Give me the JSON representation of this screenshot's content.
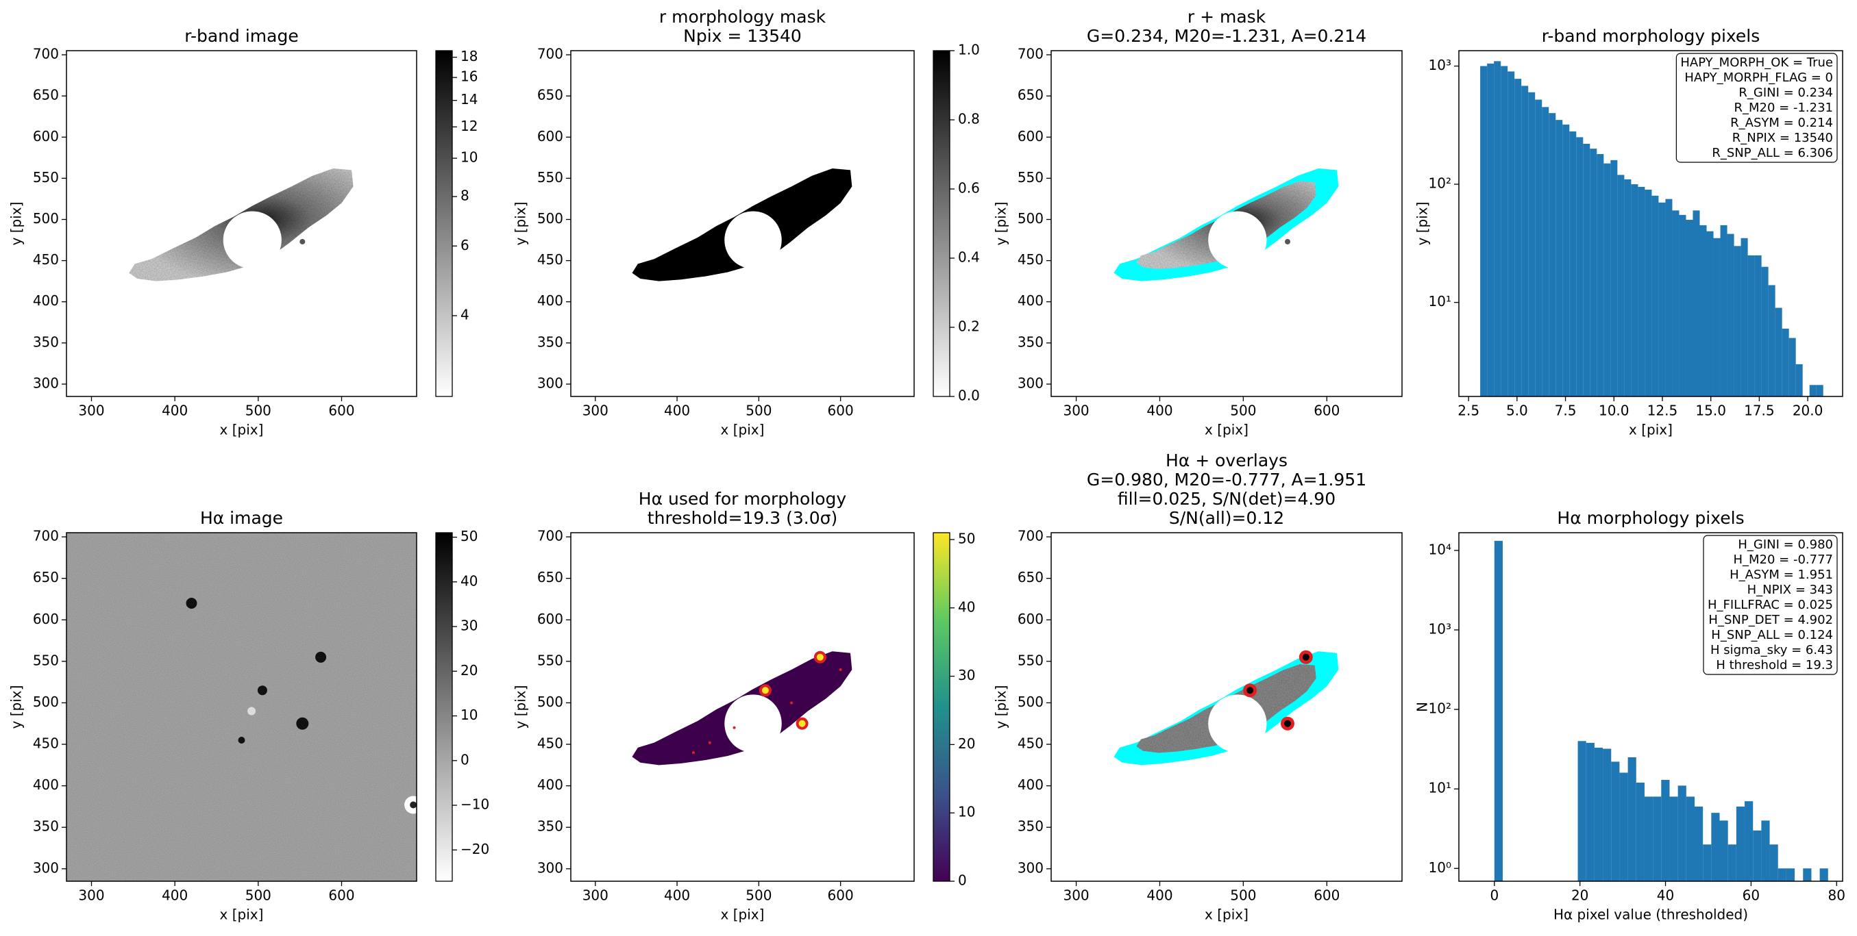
{
  "chart_data": [
    {
      "type": "image",
      "title": [
        "r-band image"
      ],
      "xlabel": "x [pix]",
      "ylabel": "y [pix]",
      "xlim": [
        270,
        690
      ],
      "ylim": [
        285,
        705
      ],
      "xticks": [
        300,
        400,
        500,
        600
      ],
      "yticks": [
        300,
        350,
        400,
        450,
        500,
        550,
        600,
        650,
        700
      ],
      "colorbar": {
        "cmap": "Greys",
        "log": true,
        "clim": [
          2.5,
          18.7
        ],
        "ticks": [
          4,
          6,
          8,
          10,
          12,
          14,
          16,
          18
        ]
      }
    },
    {
      "type": "image",
      "title": [
        "r morphology mask",
        "Npix = 13540"
      ],
      "xlabel": "x [pix]",
      "ylabel": "y [pix]",
      "xlim": [
        270,
        690
      ],
      "ylim": [
        285,
        705
      ],
      "xticks": [
        300,
        400,
        500,
        600
      ],
      "yticks": [
        300,
        350,
        400,
        450,
        500,
        550,
        600,
        650,
        700
      ],
      "colorbar": {
        "cmap": "Greys",
        "log": false,
        "clim": [
          0,
          1
        ],
        "ticks": [
          {
            "value": 0,
            "label": "0.0"
          },
          0.2,
          0.4,
          0.6,
          0.8,
          {
            "value": 1,
            "label": "1.0"
          }
        ]
      }
    },
    {
      "type": "image",
      "title": [
        "r + mask",
        "G=0.234, M20=-1.231, A=0.214"
      ],
      "xlabel": "x [pix]",
      "ylabel": "y [pix]",
      "xlim": [
        270,
        690
      ],
      "ylim": [
        285,
        705
      ],
      "xticks": [
        300,
        400,
        500,
        600
      ],
      "yticks": [
        300,
        350,
        400,
        450,
        500,
        550,
        600,
        650,
        700
      ]
    },
    {
      "type": "histogram",
      "title": [
        "r-band morphology pixels"
      ],
      "xlabel": "x [pix]",
      "ylabel": "y [pix]",
      "color": "#1f77b4",
      "log_y": true,
      "xlim": [
        2.0,
        21.8
      ],
      "ylim": [
        1.6,
        1350
      ],
      "xticks": [
        2.5,
        {
          "value": 5,
          "label": "5.0"
        },
        7.5,
        {
          "value": 10,
          "label": "10.0"
        },
        12.5,
        {
          "value": 15,
          "label": "15.0"
        },
        17.5,
        {
          "value": 20,
          "label": "20.0"
        }
      ],
      "yticks": [
        {
          "value": 10,
          "label": "10¹"
        },
        {
          "value": 100,
          "label": "10²"
        },
        {
          "value": 1000,
          "label": "10³"
        }
      ],
      "bins": [
        3.1,
        3.454,
        3.808,
        4.162,
        4.516,
        4.87,
        5.224,
        5.578,
        5.932,
        6.286,
        6.64,
        6.994,
        7.348,
        7.702,
        8.056,
        8.41,
        8.764,
        9.118,
        9.472,
        9.826,
        10.18,
        10.534,
        10.888,
        11.242,
        11.596,
        11.95,
        12.304,
        12.658,
        13.012,
        13.366,
        13.72,
        14.074,
        14.428,
        14.782,
        15.136,
        15.49,
        15.844,
        16.198,
        16.552,
        16.906,
        17.26,
        17.614,
        17.968,
        18.322,
        18.676,
        19.03,
        19.384,
        19.738,
        20.092,
        20.446,
        20.8
      ],
      "values": [
        1000,
        1050,
        1100,
        1000,
        900,
        780,
        680,
        600,
        520,
        450,
        400,
        350,
        320,
        280,
        250,
        220,
        200,
        180,
        150,
        160,
        120,
        110,
        100,
        95,
        90,
        80,
        70,
        75,
        60,
        55,
        50,
        60,
        45,
        40,
        35,
        45,
        38,
        30,
        35,
        25,
        25,
        20,
        14,
        9,
        6,
        5,
        3,
        0,
        2,
        2
      ],
      "legend": "upper right",
      "annotation": [
        "HAPY_MORPH_OK = True",
        "HAPY_MORPH_FLAG = 0",
        "R_GINI = 0.234",
        "R_M20 = -1.231",
        "R_ASYM = 0.214",
        "R_NPIX = 13540",
        "R_SNP_ALL = 6.306"
      ]
    },
    {
      "type": "image",
      "title": [
        "Hα image"
      ],
      "xlabel": "x [pix]",
      "ylabel": "y [pix]",
      "xlim": [
        270,
        690
      ],
      "ylim": [
        285,
        705
      ],
      "xticks": [
        300,
        400,
        500,
        600
      ],
      "yticks": [
        300,
        350,
        400,
        450,
        500,
        550,
        600,
        650,
        700
      ],
      "colorbar": {
        "cmap": "Greys",
        "log": false,
        "clim": [
          -27,
          51
        ],
        "ticks": [
          {
            "value": -20,
            "label": "−20"
          },
          {
            "value": -10,
            "label": "−10"
          },
          0,
          10,
          20,
          30,
          40,
          50
        ]
      }
    },
    {
      "type": "image",
      "title": [
        "Hα used for morphology",
        "threshold=19.3 (3.0σ)"
      ],
      "xlabel": "x [pix]",
      "ylabel": "y [pix]",
      "xlim": [
        270,
        690
      ],
      "ylim": [
        285,
        705
      ],
      "xticks": [
        300,
        400,
        500,
        600
      ],
      "yticks": [
        300,
        350,
        400,
        450,
        500,
        550,
        600,
        650,
        700
      ],
      "colorbar": {
        "cmap": "viridis",
        "log": false,
        "clim": [
          0,
          51
        ],
        "ticks": [
          0,
          10,
          20,
          30,
          40,
          50
        ]
      }
    },
    {
      "type": "image",
      "title": [
        "Hα + overlays",
        "G=0.980, M20=-0.777, A=1.951",
        "fill=0.025, S/N(det)=4.90",
        "S/N(all)=0.12"
      ],
      "xlabel": "x [pix]",
      "ylabel": "y [pix]",
      "xlim": [
        270,
        690
      ],
      "ylim": [
        285,
        705
      ],
      "xticks": [
        300,
        400,
        500,
        600
      ],
      "yticks": [
        300,
        350,
        400,
        450,
        500,
        550,
        600,
        650,
        700
      ]
    },
    {
      "type": "histogram",
      "title": [
        "Hα morphology pixels"
      ],
      "xlabel": "Hα pixel value (thresholded)",
      "ylabel": "N",
      "color": "#1f77b4",
      "log_y": true,
      "xlim": [
        -8.3,
        81.4
      ],
      "ylim": [
        0.69,
        16700
      ],
      "xticks": [
        0,
        20,
        40,
        60,
        80
      ],
      "yticks": [
        {
          "value": 1,
          "label": "10⁰"
        },
        {
          "value": 10,
          "label": "10¹"
        },
        {
          "value": 100,
          "label": "10²"
        },
        {
          "value": 1000,
          "label": "10³"
        },
        {
          "value": 10000,
          "label": "10⁴"
        }
      ],
      "bins": [
        0,
        1.95,
        3.9,
        5.85,
        7.8,
        9.75,
        11.7,
        13.65,
        15.6,
        17.55,
        19.5,
        21.45,
        23.4,
        25.35,
        27.3,
        29.25,
        31.2,
        33.15,
        35.1,
        37.05,
        39,
        40.95,
        42.9,
        44.85,
        46.8,
        48.75,
        50.7,
        52.65,
        54.6,
        56.55,
        58.5,
        60.45,
        62.4,
        64.35,
        66.3,
        68.25,
        70.2,
        72.15,
        74.1,
        76.05,
        78
      ],
      "values": [
        13200,
        0,
        0,
        0,
        0,
        0,
        0,
        0,
        0,
        0,
        40,
        38,
        33,
        32,
        22,
        16,
        25,
        12,
        8,
        8,
        13,
        8,
        11,
        8,
        6,
        2,
        5,
        4,
        2,
        6,
        7,
        3,
        4,
        2,
        1,
        1,
        0,
        1,
        0,
        1
      ],
      "legend": "upper right",
      "annotation": [
        "H_GINI = 0.980",
        "H_M20 = -0.777",
        "H_ASYM = 1.951",
        "H_NPIX = 343",
        "H_FILLFRAC = 0.025",
        "H_SNP_DET = 4.902",
        "H_SNP_ALL = 0.124",
        "H sigma_sky = 6.43",
        "H threshold = 19.3"
      ]
    }
  ]
}
